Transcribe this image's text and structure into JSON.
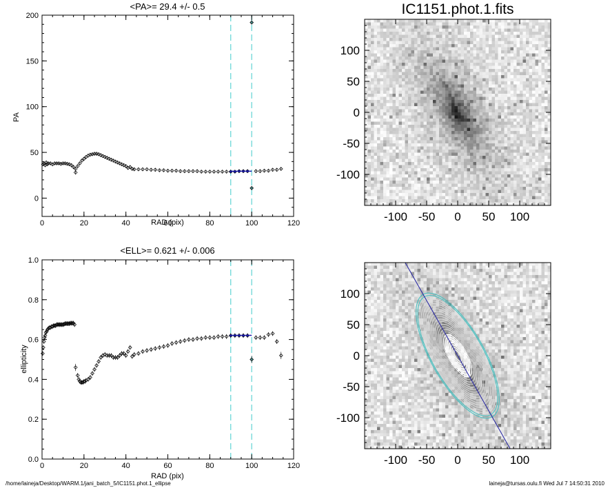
{
  "chart_data": [
    {
      "type": "scatter",
      "title": "<PA>=  29.4 +/-   0.5",
      "xlabel": "RAD (pix)",
      "ylabel": "PA",
      "xlim": [
        0,
        120
      ],
      "ylim": [
        -20,
        200
      ],
      "xticks": [
        "0",
        "20",
        "40",
        "60",
        "80",
        "100",
        "120"
      ],
      "yticks": [
        "0",
        "50",
        "100",
        "150",
        "200"
      ],
      "vlines": [
        90,
        100
      ],
      "fit_range": [
        90,
        100
      ],
      "fit_value": 29.4,
      "outliers": [
        [
          100,
          192
        ],
        [
          100,
          11
        ],
        [
          16,
          28
        ]
      ],
      "profile": [
        [
          0.5,
          37
        ],
        [
          1,
          38
        ],
        [
          1.5,
          36
        ],
        [
          2,
          39
        ],
        [
          2.5,
          37
        ],
        [
          3,
          38
        ],
        [
          4,
          38
        ],
        [
          5,
          37
        ],
        [
          6,
          38
        ],
        [
          7,
          38
        ],
        [
          8,
          38
        ],
        [
          9,
          37.5
        ],
        [
          10,
          38
        ],
        [
          11,
          38
        ],
        [
          12,
          37.5
        ],
        [
          13,
          37
        ],
        [
          14,
          36
        ],
        [
          15,
          34
        ],
        [
          16,
          32
        ],
        [
          17,
          35
        ],
        [
          18,
          38
        ],
        [
          19,
          41
        ],
        [
          20,
          43
        ],
        [
          21,
          45
        ],
        [
          22,
          46.5
        ],
        [
          23,
          47.5
        ],
        [
          24,
          48
        ],
        [
          25,
          48.5
        ],
        [
          26,
          48.5
        ],
        [
          27,
          48
        ],
        [
          28,
          47
        ],
        [
          29,
          46
        ],
        [
          30,
          45
        ],
        [
          31,
          44
        ],
        [
          32,
          43
        ],
        [
          33,
          42
        ],
        [
          34,
          41
        ],
        [
          35,
          40
        ],
        [
          36,
          39
        ],
        [
          37,
          38
        ],
        [
          38,
          37
        ],
        [
          39,
          36
        ],
        [
          40,
          35
        ],
        [
          41,
          33
        ],
        [
          42,
          34
        ],
        [
          43,
          32
        ],
        [
          44,
          31.5
        ],
        [
          46,
          31.5
        ],
        [
          48,
          31.5
        ],
        [
          50,
          31.5
        ],
        [
          52,
          31
        ],
        [
          54,
          31
        ],
        [
          56,
          30.5
        ],
        [
          58,
          30.5
        ],
        [
          60,
          30
        ],
        [
          62,
          30
        ],
        [
          64,
          30
        ],
        [
          66,
          29.5
        ],
        [
          68,
          29.5
        ],
        [
          70,
          29.5
        ],
        [
          72,
          29.5
        ],
        [
          74,
          29.5
        ],
        [
          76,
          29
        ],
        [
          78,
          29
        ],
        [
          80,
          29
        ],
        [
          82,
          29
        ],
        [
          84,
          29
        ],
        [
          86,
          29
        ],
        [
          88,
          29
        ],
        [
          90,
          29
        ],
        [
          92,
          29
        ],
        [
          94,
          29.5
        ],
        [
          96,
          29.5
        ],
        [
          98,
          29.5
        ],
        [
          102,
          29.5
        ],
        [
          104,
          29.5
        ],
        [
          106,
          30
        ],
        [
          108,
          30
        ],
        [
          110,
          31
        ],
        [
          112,
          31
        ],
        [
          114,
          32
        ]
      ]
    },
    {
      "type": "scatter",
      "title": "<ELL>= 0.621 +/-  0.006",
      "xlabel": "RAD (pix)",
      "ylabel": "ellipticity",
      "xlim": [
        0,
        120
      ],
      "ylim": [
        0,
        1
      ],
      "xticks": [
        "0",
        "20",
        "40",
        "60",
        "80",
        "100",
        "120"
      ],
      "yticks": [
        "0.0",
        "0.2",
        "0.4",
        "0.6",
        "0.8",
        "1.0"
      ],
      "vlines": [
        90,
        100
      ],
      "fit_range": [
        90,
        100
      ],
      "fit_value": 0.621,
      "outliers": [
        [
          100,
          0.5
        ],
        [
          114,
          0.52
        ],
        [
          16,
          0.46
        ]
      ],
      "profile_inner": [
        [
          0.3,
          0.53
        ],
        [
          0.6,
          0.56
        ],
        [
          0.9,
          0.59
        ],
        [
          1.2,
          0.61
        ],
        [
          1.5,
          0.62
        ],
        [
          1.8,
          0.635
        ],
        [
          2.2,
          0.64
        ],
        [
          2.6,
          0.65
        ],
        [
          3,
          0.655
        ],
        [
          3.5,
          0.66
        ],
        [
          4,
          0.66
        ],
        [
          4.5,
          0.665
        ],
        [
          5,
          0.665
        ],
        [
          5.5,
          0.67
        ],
        [
          6,
          0.67
        ],
        [
          6.5,
          0.67
        ],
        [
          7,
          0.675
        ],
        [
          7.5,
          0.675
        ],
        [
          8,
          0.675
        ],
        [
          8.5,
          0.675
        ],
        [
          9,
          0.675
        ],
        [
          9.5,
          0.675
        ],
        [
          10,
          0.675
        ],
        [
          10.5,
          0.677
        ],
        [
          11,
          0.68
        ],
        [
          11.5,
          0.68
        ],
        [
          12,
          0.68
        ],
        [
          12.5,
          0.68
        ],
        [
          13,
          0.68
        ],
        [
          13.5,
          0.682
        ],
        [
          14,
          0.682
        ],
        [
          14.5,
          0.682
        ],
        [
          15,
          0.682
        ],
        [
          15.5,
          0.675
        ]
      ],
      "profile_outer": [
        [
          17,
          0.42
        ],
        [
          17.5,
          0.4
        ],
        [
          18,
          0.39
        ],
        [
          18.5,
          0.385
        ],
        [
          19,
          0.385
        ],
        [
          19.5,
          0.385
        ],
        [
          20,
          0.39
        ],
        [
          20.5,
          0.39
        ],
        [
          21,
          0.395
        ],
        [
          22,
          0.4
        ],
        [
          23,
          0.41
        ],
        [
          24,
          0.43
        ],
        [
          25,
          0.45
        ],
        [
          26,
          0.47
        ],
        [
          27,
          0.49
        ],
        [
          28,
          0.51
        ],
        [
          29,
          0.52
        ],
        [
          30,
          0.525
        ],
        [
          31,
          0.52
        ],
        [
          32,
          0.52
        ],
        [
          33,
          0.52
        ],
        [
          34,
          0.51
        ],
        [
          35,
          0.51
        ],
        [
          36,
          0.51
        ],
        [
          37,
          0.52
        ],
        [
          38,
          0.53
        ],
        [
          39,
          0.53
        ],
        [
          40,
          0.52
        ],
        [
          41,
          0.54
        ],
        [
          42,
          0.56
        ],
        [
          43,
          0.515
        ],
        [
          44,
          0.525
        ],
        [
          46,
          0.53
        ],
        [
          48,
          0.54
        ],
        [
          50,
          0.545
        ],
        [
          52,
          0.55
        ],
        [
          54,
          0.555
        ],
        [
          56,
          0.56
        ],
        [
          58,
          0.565
        ],
        [
          60,
          0.57
        ],
        [
          62,
          0.58
        ],
        [
          64,
          0.585
        ],
        [
          66,
          0.59
        ],
        [
          68,
          0.595
        ],
        [
          70,
          0.6
        ],
        [
          72,
          0.6
        ],
        [
          74,
          0.605
        ],
        [
          76,
          0.605
        ],
        [
          78,
          0.61
        ],
        [
          80,
          0.61
        ],
        [
          82,
          0.61
        ],
        [
          84,
          0.615
        ],
        [
          86,
          0.615
        ],
        [
          88,
          0.615
        ],
        [
          90,
          0.62
        ],
        [
          92,
          0.62
        ],
        [
          94,
          0.62
        ],
        [
          96,
          0.62
        ],
        [
          98,
          0.62
        ],
        [
          102,
          0.61
        ],
        [
          104,
          0.61
        ],
        [
          106,
          0.61
        ],
        [
          108,
          0.625
        ],
        [
          110,
          0.63
        ],
        [
          112,
          0.59
        ]
      ]
    },
    {
      "type": "heatmap",
      "title": "IC1151.phot.1.fits",
      "xlim": [
        -150,
        150
      ],
      "ylim": [
        -150,
        150
      ],
      "xticks": [
        "-100",
        "-50",
        "0",
        "50",
        "100"
      ],
      "yticks": [
        "100",
        "50",
        "0",
        "-50",
        "-100"
      ],
      "galaxy_pa_deg": 29.4,
      "ellipticity": 0.621
    },
    {
      "type": "heatmap",
      "title": "",
      "xlim": [
        -150,
        150
      ],
      "ylim": [
        -150,
        150
      ],
      "xticks": [
        "-100",
        "-50",
        "0",
        "50",
        "100"
      ],
      "yticks": [
        "100",
        "50",
        "0",
        "-50",
        "-100"
      ],
      "galaxy_pa_deg": 29.4,
      "ellipticity": 0.621,
      "overlay": "isophote ellipses"
    }
  ],
  "footer": {
    "path": "/home/laineja/Desktop/WARM.1/jani_batch_5/IC1151.phot.1_ellipse",
    "stamp": "laineja@tursas.oulu.fi  Wed Jul  7 14:50:31 2010"
  },
  "colors": {
    "guide": "#5fd3d3",
    "fit": "#1a1aaa",
    "cyan_ellipse": "#40c0c0",
    "axis_line": "#2020a0"
  }
}
